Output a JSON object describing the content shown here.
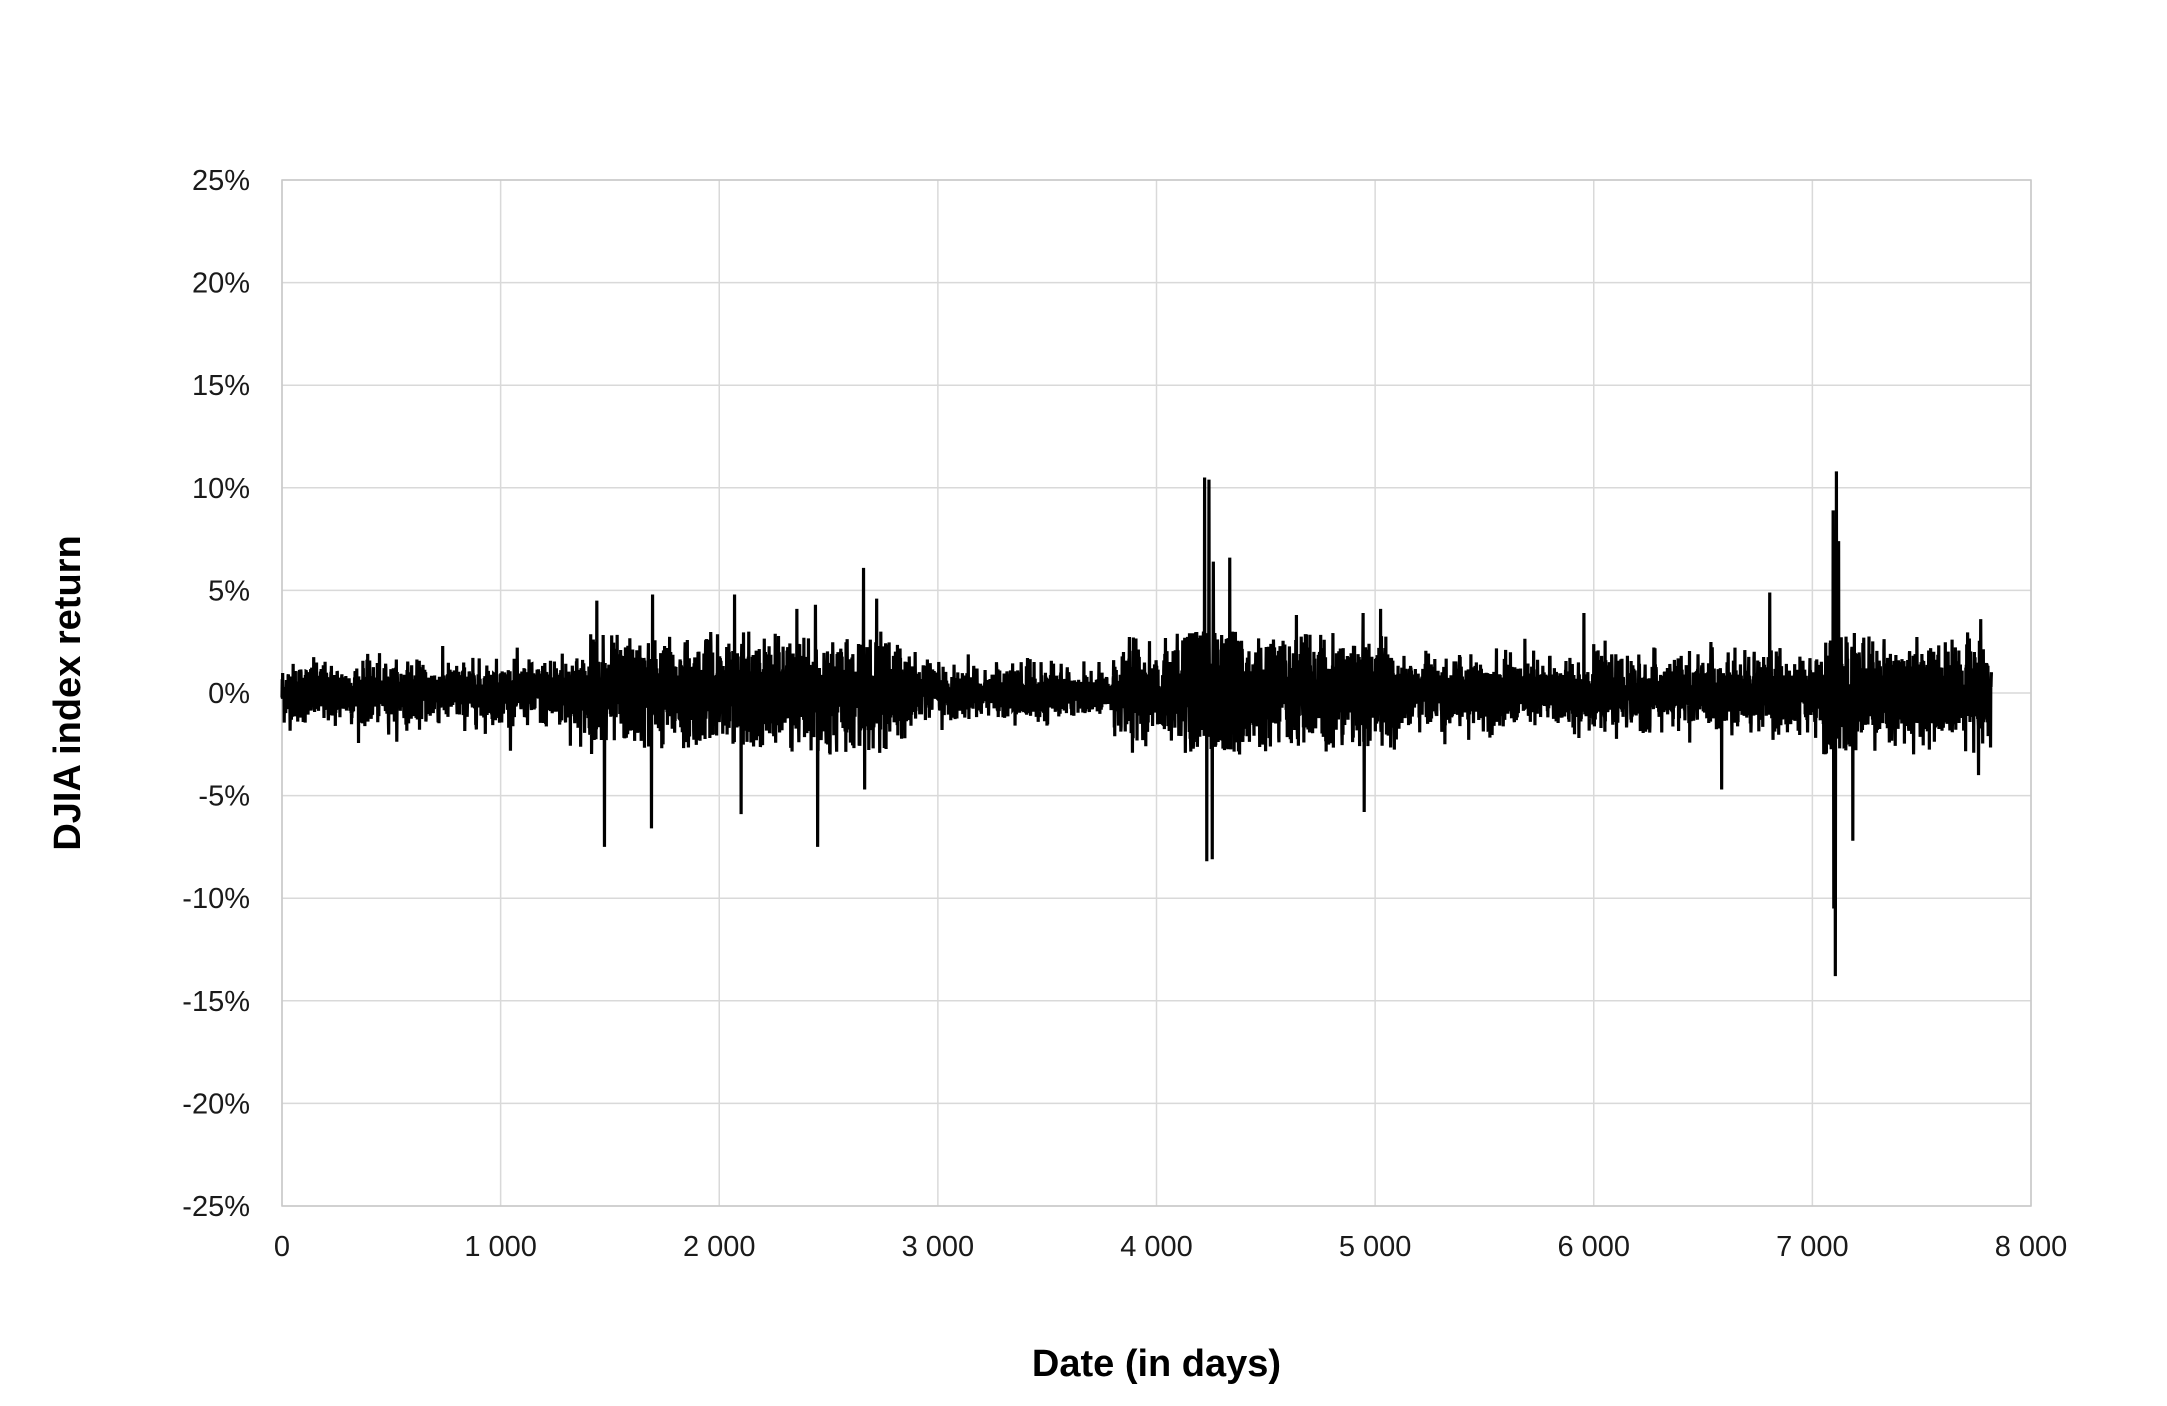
{
  "chart_data": {
    "type": "line",
    "title": "",
    "xlabel": "Date (in days)",
    "ylabel": "DJIA index return",
    "xlim": [
      0,
      8000
    ],
    "ylim": [
      -0.25,
      0.25
    ],
    "x_ticks": [
      0,
      1000,
      2000,
      3000,
      4000,
      5000,
      6000,
      7000,
      8000
    ],
    "x_tick_labels": [
      "0",
      "1 000",
      "2 000",
      "3 000",
      "4 000",
      "5 000",
      "6 000",
      "7 000",
      "8 000"
    ],
    "y_ticks": [
      0.25,
      0.2,
      0.15,
      0.1,
      0.05,
      0,
      -0.05,
      -0.1,
      -0.15,
      -0.2,
      -0.25
    ],
    "y_tick_labels": [
      "25%",
      "20%",
      "15%",
      "10%",
      "5%",
      "0%",
      "-5%",
      "-10%",
      "-15%",
      "-20%",
      "-25%"
    ],
    "grid": true,
    "legend": "none",
    "series": [
      {
        "color": "#000000",
        "x_start": 0,
        "x_step": 1,
        "n_points": 7820,
        "volatility_regimes": [
          {
            "x": [
              0,
              1200
            ],
            "sigma": 0.007
          },
          {
            "x": [
              1200,
              1400
            ],
            "sigma": 0.009
          },
          {
            "x": [
              1400,
              2900
            ],
            "sigma": 0.012
          },
          {
            "x": [
              2900,
              3800
            ],
            "sigma": 0.006
          },
          {
            "x": [
              3800,
              4150
            ],
            "sigma": 0.011
          },
          {
            "x": [
              4150,
              4400
            ],
            "sigma": 0.024
          },
          {
            "x": [
              4400,
              5100
            ],
            "sigma": 0.013
          },
          {
            "x": [
              5100,
              6700
            ],
            "sigma": 0.008
          },
          {
            "x": [
              6700,
              7050
            ],
            "sigma": 0.009
          },
          {
            "x": [
              7050,
              7200
            ],
            "sigma": 0.02
          },
          {
            "x": [
              7200,
              7820
            ],
            "sigma": 0.011
          }
        ],
        "peaks": [
          {
            "x": 1475,
            "y": -0.075
          },
          {
            "x": 1440,
            "y": 0.045
          },
          {
            "x": 1690,
            "y": -0.066
          },
          {
            "x": 1695,
            "y": 0.048
          },
          {
            "x": 2070,
            "y": 0.048
          },
          {
            "x": 2100,
            "y": -0.059
          },
          {
            "x": 2355,
            "y": 0.041
          },
          {
            "x": 2440,
            "y": 0.043
          },
          {
            "x": 2450,
            "y": -0.075
          },
          {
            "x": 2660,
            "y": 0.061
          },
          {
            "x": 2665,
            "y": -0.047
          },
          {
            "x": 2720,
            "y": 0.046
          },
          {
            "x": 4220,
            "y": 0.105
          },
          {
            "x": 4230,
            "y": -0.082
          },
          {
            "x": 4240,
            "y": 0.104
          },
          {
            "x": 4255,
            "y": -0.081
          },
          {
            "x": 4260,
            "y": 0.064
          },
          {
            "x": 4335,
            "y": 0.066
          },
          {
            "x": 4640,
            "y": 0.038
          },
          {
            "x": 4945,
            "y": 0.039
          },
          {
            "x": 4950,
            "y": -0.058
          },
          {
            "x": 5025,
            "y": 0.041
          },
          {
            "x": 5955,
            "y": 0.039
          },
          {
            "x": 6585,
            "y": -0.047
          },
          {
            "x": 6805,
            "y": 0.049
          },
          {
            "x": 7095,
            "y": 0.089
          },
          {
            "x": 7098,
            "y": -0.105
          },
          {
            "x": 7105,
            "y": -0.138
          },
          {
            "x": 7110,
            "y": 0.108
          },
          {
            "x": 7120,
            "y": 0.074
          },
          {
            "x": 7185,
            "y": -0.072
          },
          {
            "x": 7770,
            "y": 0.036
          },
          {
            "x": 7760,
            "y": -0.04
          }
        ]
      }
    ]
  }
}
